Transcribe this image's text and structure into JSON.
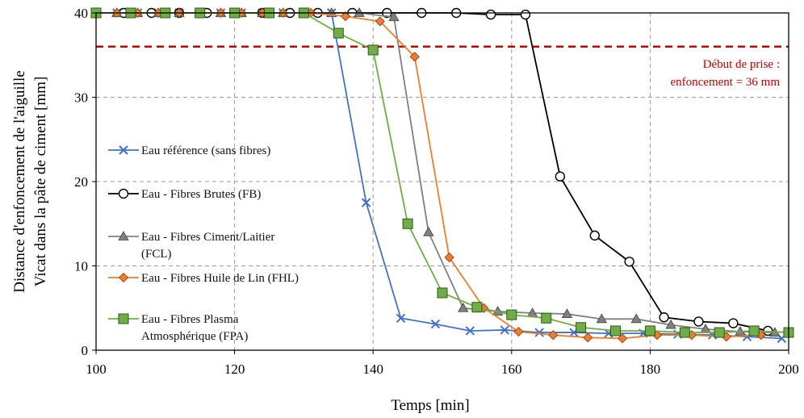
{
  "chart_data": {
    "type": "line",
    "xlabel": "Temps [min]",
    "ylabel_line1": "Distance d'enfoncement de l'aiguille",
    "ylabel_line2": "Vicat dans la pâte de ciment [mm]",
    "xlim": [
      100,
      200
    ],
    "ylim": [
      0,
      40
    ],
    "xticks": [
      100,
      120,
      140,
      160,
      180,
      200
    ],
    "yticks": [
      0,
      10,
      20,
      30,
      40
    ],
    "grid": "dashed",
    "legend_position": "left",
    "threshold": {
      "y": 36,
      "color": "#c00000",
      "label_line1": "Début de prise :",
      "label_line2": "enfoncement = 36 mm"
    },
    "series": [
      {
        "name": "Eau référence (sans fibres)",
        "color": "#4472c4",
        "marker": "x",
        "points": [
          [
            100,
            40
          ],
          [
            103,
            40
          ],
          [
            106,
            40
          ],
          [
            109,
            40
          ],
          [
            112,
            40
          ],
          [
            115,
            40
          ],
          [
            118,
            40
          ],
          [
            121,
            40
          ],
          [
            124,
            40
          ],
          [
            127,
            40
          ],
          [
            130,
            40
          ],
          [
            134,
            40
          ],
          [
            139,
            17.5
          ],
          [
            144,
            3.8
          ],
          [
            149,
            3.1
          ],
          [
            154,
            2.3
          ],
          [
            159,
            2.4
          ],
          [
            164,
            2.1
          ],
          [
            169,
            2.1
          ],
          [
            174,
            2.0
          ],
          [
            179,
            2.0
          ],
          [
            184,
            1.9
          ],
          [
            189,
            1.8
          ],
          [
            194,
            1.6
          ],
          [
            199,
            1.4
          ]
        ]
      },
      {
        "name": "Eau - Fibres Brutes (FB)",
        "color": "#000000",
        "marker": "circle",
        "points": [
          [
            100,
            40
          ],
          [
            104,
            40
          ],
          [
            108,
            40
          ],
          [
            112,
            40
          ],
          [
            116,
            40
          ],
          [
            120,
            40
          ],
          [
            124,
            40
          ],
          [
            128,
            40
          ],
          [
            132,
            40
          ],
          [
            137,
            40
          ],
          [
            142,
            40
          ],
          [
            147,
            40
          ],
          [
            152,
            40
          ],
          [
            157,
            39.8
          ],
          [
            162,
            39.8
          ],
          [
            167,
            20.6
          ],
          [
            172,
            13.6
          ],
          [
            177,
            10.5
          ],
          [
            182,
            3.9
          ],
          [
            187,
            3.4
          ],
          [
            192,
            3.2
          ],
          [
            197,
            2.3
          ]
        ]
      },
      {
        "name": "Eau - Fibres Ciment/Laitier (FCL)",
        "color": "#808080",
        "marker": "triangle",
        "points": [
          [
            100,
            40
          ],
          [
            103,
            40
          ],
          [
            106,
            40
          ],
          [
            109,
            40
          ],
          [
            112,
            40
          ],
          [
            115,
            40
          ],
          [
            118,
            40
          ],
          [
            121,
            40
          ],
          [
            124,
            40
          ],
          [
            127,
            40
          ],
          [
            130,
            40
          ],
          [
            134,
            40
          ],
          [
            138,
            40
          ],
          [
            143,
            39.5
          ],
          [
            148,
            14
          ],
          [
            153,
            5.0
          ],
          [
            158,
            4.6
          ],
          [
            163,
            4.4
          ],
          [
            168,
            4.3
          ],
          [
            173,
            3.7
          ],
          [
            178,
            3.7
          ],
          [
            183,
            3.0
          ],
          [
            188,
            2.5
          ],
          [
            193,
            2.2
          ],
          [
            198,
            2.1
          ]
        ]
      },
      {
        "name": "Eau - Fibres Huile de Lin (FHL)",
        "color": "#ed7d31",
        "marker": "diamond",
        "points": [
          [
            100,
            40
          ],
          [
            103,
            40
          ],
          [
            106,
            40
          ],
          [
            109,
            40
          ],
          [
            112,
            40
          ],
          [
            115,
            40
          ],
          [
            118,
            40
          ],
          [
            121,
            40
          ],
          [
            124,
            40
          ],
          [
            127,
            40
          ],
          [
            131,
            40
          ],
          [
            136,
            39.6
          ],
          [
            141,
            39
          ],
          [
            146,
            34.8
          ],
          [
            151,
            11
          ],
          [
            156,
            5
          ],
          [
            161,
            2.2
          ],
          [
            166,
            1.8
          ],
          [
            171,
            1.5
          ],
          [
            176,
            1.4
          ],
          [
            181,
            1.8
          ],
          [
            186,
            1.8
          ],
          [
            191,
            1.6
          ],
          [
            196,
            1.8
          ]
        ]
      },
      {
        "name": "Eau - Fibres Plasma Atmosphérique (FPA)",
        "color": "#70ad47",
        "marker": "square",
        "points": [
          [
            100,
            40
          ],
          [
            105,
            40
          ],
          [
            110,
            40
          ],
          [
            115,
            40
          ],
          [
            120,
            40
          ],
          [
            125,
            40
          ],
          [
            130,
            40
          ],
          [
            135,
            37.6
          ],
          [
            140,
            35.6
          ],
          [
            145,
            15
          ],
          [
            150,
            6.8
          ],
          [
            155,
            5.1
          ],
          [
            160,
            4.2
          ],
          [
            165,
            3.8
          ],
          [
            170,
            2.7
          ],
          [
            175,
            2.3
          ],
          [
            180,
            2.3
          ],
          [
            185,
            2.1
          ],
          [
            190,
            2.1
          ],
          [
            195,
            2.3
          ],
          [
            200,
            2.1
          ]
        ]
      }
    ]
  }
}
